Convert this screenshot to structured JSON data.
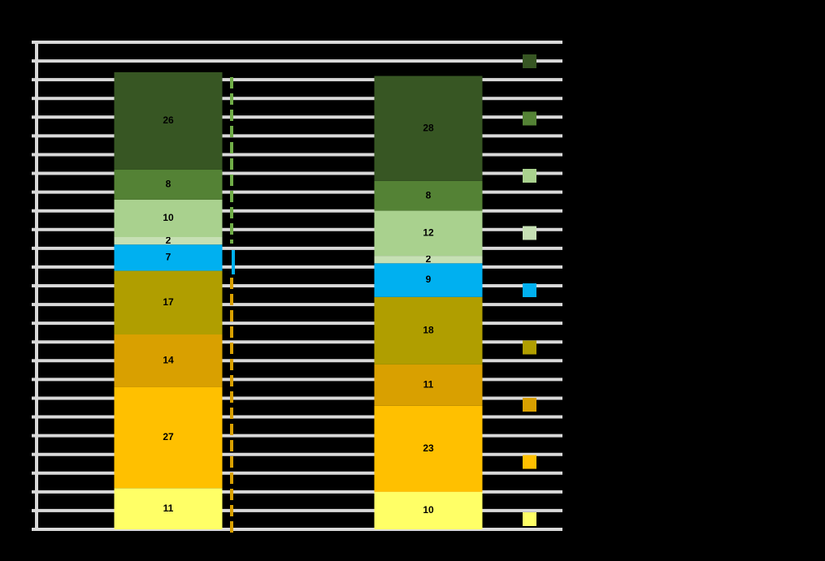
{
  "chart_data": {
    "type": "stacked_bar",
    "categories": [
      null,
      null
    ],
    "series": [
      {
        "color": "#ffff66",
        "values": [
          11,
          10
        ]
      },
      {
        "color": "#ffc000",
        "values": [
          27,
          23
        ]
      },
      {
        "color": "#d9a000",
        "values": [
          14,
          11
        ]
      },
      {
        "color": "#b09e00",
        "values": [
          17,
          18
        ]
      },
      {
        "color": "#00b0f0",
        "values": [
          7,
          9
        ]
      },
      {
        "color": "#c6e0b4",
        "values": [
          2,
          2
        ]
      },
      {
        "color": "#a9d18e",
        "values": [
          10,
          12
        ]
      },
      {
        "color": "#548235",
        "values": [
          8,
          8
        ]
      },
      {
        "color": "#375623",
        "values": [
          26,
          28
        ]
      }
    ],
    "ylim": [
      0,
      130
    ],
    "yticks": [
      0,
      5,
      10,
      15,
      20,
      25,
      30,
      35,
      40,
      45,
      50,
      55,
      60,
      65,
      70,
      75,
      80,
      85,
      90,
      95,
      100,
      105,
      110,
      115,
      120,
      125,
      130
    ],
    "grid": true
  }
}
